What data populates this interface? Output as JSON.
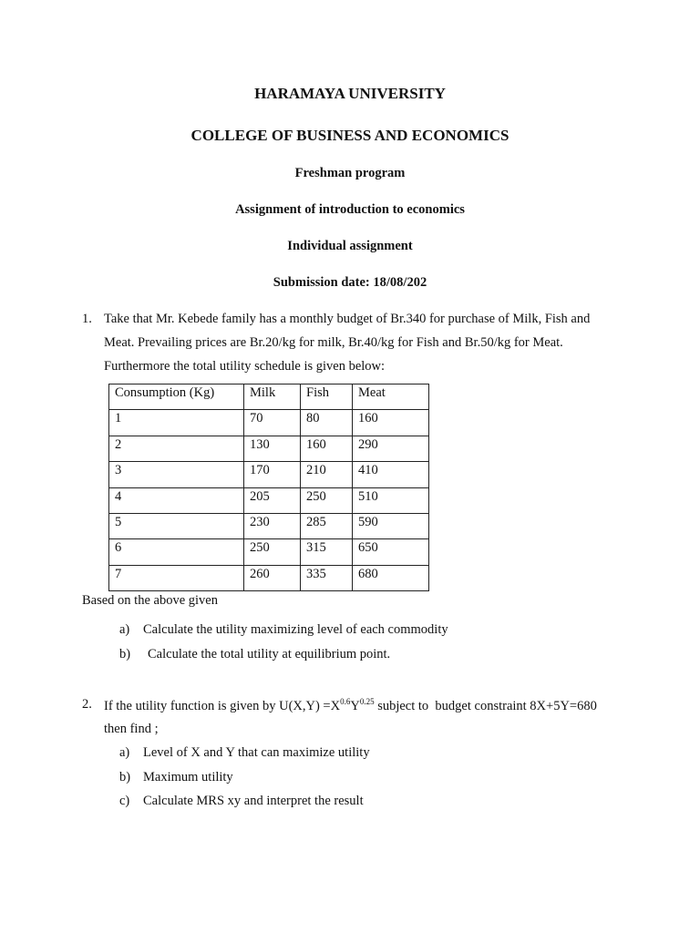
{
  "header": {
    "university": "HARAMAYA UNIVERSITY",
    "college": "COLLEGE OF BUSINESS AND ECONOMICS",
    "program": "Freshman program",
    "course": "Assignment of introduction to economics",
    "type": "Individual assignment",
    "submission": "Submission date: 18/08/202"
  },
  "q1": {
    "number": "1.",
    "line1": "Take that Mr. Kebede family has a monthly budget of Br.340 for purchase of Milk, Fish and",
    "line2": "Meat. Prevailing prices are Br.20/kg for milk, Br.40/kg for Fish and Br.50/kg for Meat.",
    "line3": "Furthermore the total utility schedule is given below:",
    "table": {
      "headers": [
        "Consumption (Kg)",
        "Milk",
        "Fish",
        "Meat"
      ],
      "rows": [
        [
          "1",
          "70",
          "80",
          "160"
        ],
        [
          "2",
          "130",
          "160",
          "290"
        ],
        [
          "3",
          "170",
          "210",
          "410"
        ],
        [
          "4",
          "205",
          "250",
          "510"
        ],
        [
          "5",
          "230",
          "285",
          "590"
        ],
        [
          "6",
          "250",
          "315",
          "650"
        ],
        [
          "7",
          "260",
          "335",
          "680"
        ]
      ]
    },
    "based": "Based on the above given",
    "items": [
      {
        "label": "a)",
        "text": "Calculate the utility maximizing level of each commodity"
      },
      {
        "label": "b)",
        "text": "Calculate the total utility at equilibrium point."
      }
    ]
  },
  "q2": {
    "number": "2.",
    "pre": "If the utility function is given by U(X,Y) =X",
    "exp1": "0.6",
    "mid": "Y",
    "exp2": "0.25",
    "post": " subject to  budget constraint 8X+5Y=680",
    "line2": "then find ;",
    "items": [
      {
        "label": "a)",
        "text": "Level of X and Y that can maximize utility"
      },
      {
        "label": "b)",
        "text": "Maximum utility"
      },
      {
        "label": "c)",
        "text": "Calculate MRS xy and interpret the result"
      }
    ]
  }
}
